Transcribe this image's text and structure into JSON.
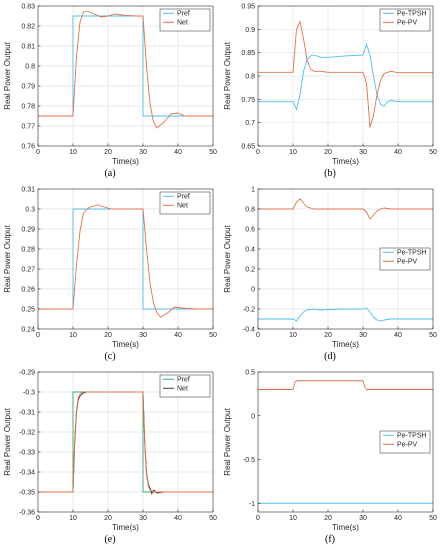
{
  "figure": {
    "panels": [
      {
        "caption": "(a)"
      },
      {
        "caption": "(b)"
      },
      {
        "caption": "(c)"
      },
      {
        "caption": "(d)"
      },
      {
        "caption": "(e)"
      },
      {
        "caption": "(f)"
      }
    ]
  },
  "colors": {
    "blue": "#4DBEEE",
    "orange": "#E0714B",
    "green": "#3FA56A",
    "dark": "#404040"
  },
  "chart_data": [
    {
      "type": "line",
      "xlabel": "Time(s)",
      "ylabel": "Real Power Output",
      "xlim": [
        0,
        50
      ],
      "ylim": [
        0.76,
        0.83
      ],
      "xticks": [
        0,
        10,
        20,
        30,
        40,
        50
      ],
      "yticks": [
        0.76,
        0.77,
        0.78,
        0.79,
        0.8,
        0.81,
        0.82,
        0.83
      ],
      "ytick_labels": [
        "0.76",
        "0.77",
        "0.78",
        "0.79",
        "0.8",
        "0.81",
        "0.82",
        "0.83"
      ],
      "grid": true,
      "legend": "top-right",
      "series": [
        {
          "name": "Pref",
          "color": "#4DBEEE",
          "x": [
            0,
            10,
            10,
            30,
            30,
            50
          ],
          "y": [
            0.775,
            0.775,
            0.825,
            0.825,
            0.775,
            0.775
          ]
        },
        {
          "name": "Net",
          "color": "#E0714B",
          "x": [
            0,
            10,
            11,
            12,
            13,
            14,
            16,
            18,
            20,
            22,
            25,
            28,
            30,
            31,
            32,
            33,
            34,
            36,
            38,
            40,
            42,
            45,
            50
          ],
          "y": [
            0.775,
            0.775,
            0.805,
            0.822,
            0.827,
            0.8275,
            0.826,
            0.8245,
            0.825,
            0.826,
            0.8253,
            0.825,
            0.825,
            0.8,
            0.781,
            0.772,
            0.769,
            0.772,
            0.776,
            0.7765,
            0.775,
            0.775,
            0.775
          ]
        }
      ]
    },
    {
      "type": "line",
      "xlabel": "Time(s)",
      "ylabel": "Real Power Output",
      "xlim": [
        0,
        50
      ],
      "ylim": [
        0.65,
        0.95
      ],
      "xticks": [
        0,
        10,
        20,
        30,
        40,
        50
      ],
      "yticks": [
        0.65,
        0.7,
        0.75,
        0.8,
        0.85,
        0.9,
        0.95
      ],
      "ytick_labels": [
        "0.65",
        "0.7",
        "0.75",
        "0.8",
        "0.85",
        "0.9",
        "0.95"
      ],
      "grid": true,
      "legend": "top-right",
      "series": [
        {
          "name": "Pe-TPSH",
          "color": "#4DBEEE",
          "x": [
            0,
            10,
            11,
            12,
            13,
            14,
            15,
            16,
            18,
            20,
            25,
            30,
            31,
            32,
            33,
            34,
            35,
            36,
            37,
            38,
            40,
            45,
            50
          ],
          "y": [
            0.745,
            0.745,
            0.728,
            0.76,
            0.81,
            0.835,
            0.843,
            0.845,
            0.84,
            0.84,
            0.843,
            0.845,
            0.868,
            0.845,
            0.8,
            0.76,
            0.74,
            0.735,
            0.745,
            0.748,
            0.745,
            0.745,
            0.745
          ]
        },
        {
          "name": "Pe-PV",
          "color": "#E0714B",
          "x": [
            0,
            10,
            11,
            12,
            13,
            14,
            15,
            16,
            18,
            20,
            25,
            30,
            31,
            32,
            33,
            34,
            35,
            36,
            37,
            38,
            40,
            45,
            50
          ],
          "y": [
            0.808,
            0.808,
            0.9,
            0.917,
            0.88,
            0.835,
            0.815,
            0.81,
            0.81,
            0.808,
            0.808,
            0.808,
            0.785,
            0.69,
            0.715,
            0.76,
            0.79,
            0.805,
            0.808,
            0.81,
            0.807,
            0.807,
            0.807
          ]
        }
      ]
    },
    {
      "type": "line",
      "xlabel": "Time(s)",
      "ylabel": "Real Power Output",
      "xlim": [
        0,
        50
      ],
      "ylim": [
        0.24,
        0.31
      ],
      "xticks": [
        0,
        10,
        20,
        30,
        40,
        50
      ],
      "yticks": [
        0.24,
        0.25,
        0.26,
        0.27,
        0.28,
        0.29,
        0.3,
        0.31
      ],
      "ytick_labels": [
        "0.24",
        "0.25",
        "0.26",
        "0.27",
        "0.28",
        "0.29",
        "0.3",
        "0.31"
      ],
      "grid": true,
      "legend": "top-right",
      "series": [
        {
          "name": "Pref",
          "color": "#4DBEEE",
          "x": [
            0,
            10,
            10,
            30,
            30,
            50
          ],
          "y": [
            0.25,
            0.25,
            0.3,
            0.3,
            0.25,
            0.25
          ]
        },
        {
          "name": "Net",
          "color": "#E0714B",
          "x": [
            0,
            10,
            11,
            12,
            13,
            14,
            15,
            17,
            19,
            21,
            24,
            27,
            30,
            31,
            32,
            33,
            34,
            35,
            37,
            39,
            41,
            45,
            50
          ],
          "y": [
            0.25,
            0.25,
            0.272,
            0.289,
            0.298,
            0.3,
            0.301,
            0.302,
            0.301,
            0.3,
            0.3,
            0.3,
            0.3,
            0.28,
            0.263,
            0.253,
            0.248,
            0.246,
            0.248,
            0.251,
            0.2505,
            0.25,
            0.25
          ]
        }
      ]
    },
    {
      "type": "line",
      "xlabel": "Time(s)",
      "ylabel": "Real Power Output",
      "xlim": [
        0,
        50
      ],
      "ylim": [
        -0.4,
        1
      ],
      "xticks": [
        0,
        10,
        20,
        30,
        40,
        50
      ],
      "yticks": [
        -0.4,
        -0.2,
        0,
        0.2,
        0.4,
        0.6,
        0.8,
        1
      ],
      "ytick_labels": [
        "-0.4",
        "-0.2",
        "0",
        "0.2",
        "0.4",
        "0.6",
        "0.8",
        "1"
      ],
      "grid": true,
      "legend": "center-right",
      "series": [
        {
          "name": "Pe-TPSH",
          "color": "#4DBEEE",
          "x": [
            0,
            10,
            11,
            12,
            13,
            14,
            15,
            16,
            18,
            20,
            25,
            30,
            31,
            32,
            33,
            34,
            35,
            36,
            38,
            40,
            45,
            50
          ],
          "y": [
            -0.3,
            -0.3,
            -0.32,
            -0.27,
            -0.23,
            -0.21,
            -0.205,
            -0.2,
            -0.21,
            -0.205,
            -0.2,
            -0.2,
            -0.19,
            -0.23,
            -0.28,
            -0.31,
            -0.32,
            -0.31,
            -0.3,
            -0.3,
            -0.3,
            -0.3
          ]
        },
        {
          "name": "Pe-PV",
          "color": "#E0714B",
          "x": [
            0,
            10,
            11,
            12,
            13,
            14,
            15,
            16,
            18,
            20,
            25,
            30,
            31,
            32,
            33,
            34,
            35,
            36,
            38,
            40,
            45,
            50
          ],
          "y": [
            0.8,
            0.8,
            0.87,
            0.9,
            0.86,
            0.82,
            0.81,
            0.8,
            0.8,
            0.8,
            0.8,
            0.8,
            0.77,
            0.7,
            0.74,
            0.78,
            0.8,
            0.81,
            0.8,
            0.8,
            0.8,
            0.8
          ]
        }
      ]
    },
    {
      "type": "line",
      "xlabel": "Time(s)",
      "ylabel": "Real Power Output",
      "xlim": [
        0,
        50
      ],
      "ylim": [
        -0.36,
        -0.29
      ],
      "xticks": [
        0,
        10,
        20,
        30,
        40,
        50
      ],
      "yticks": [
        -0.36,
        -0.35,
        -0.34,
        -0.33,
        -0.32,
        -0.31,
        -0.3,
        -0.29
      ],
      "ytick_labels": [
        "-0.36",
        "-0.35",
        "-0.34",
        "-0.33",
        "-0.32",
        "-0.31",
        "-0.3",
        "-0.29"
      ],
      "grid": true,
      "legend": "top-right",
      "series": [
        {
          "name": "Pref",
          "color": "#3FA56A",
          "x": [
            0,
            10,
            10,
            30,
            30,
            50
          ],
          "y": [
            -0.35,
            -0.35,
            -0.3,
            -0.3,
            -0.35,
            -0.35
          ]
        },
        {
          "name": "Net",
          "color": "#404040",
          "x": [
            0,
            10,
            10.5,
            11,
            11.5,
            12,
            13,
            14,
            16,
            20,
            25,
            30,
            30.5,
            31,
            31.5,
            32,
            32.5,
            33,
            34,
            36,
            40,
            50
          ],
          "y": [
            -0.35,
            -0.35,
            -0.325,
            -0.31,
            -0.304,
            -0.302,
            -0.3005,
            -0.3,
            -0.3,
            -0.3,
            -0.3,
            -0.3,
            -0.325,
            -0.34,
            -0.346,
            -0.348,
            -0.351,
            -0.349,
            -0.3505,
            -0.35,
            -0.35,
            -0.35
          ]
        },
        {
          "name": "",
          "color": "#E0714B",
          "x": [
            0,
            10,
            10.5,
            11,
            11.5,
            12,
            13,
            14,
            16,
            20,
            25,
            30,
            30.5,
            31,
            31.5,
            32,
            33,
            34,
            36,
            40,
            50
          ],
          "y": [
            -0.35,
            -0.35,
            -0.323,
            -0.309,
            -0.303,
            -0.301,
            -0.3,
            -0.3,
            -0.3,
            -0.3,
            -0.3,
            -0.3,
            -0.326,
            -0.341,
            -0.347,
            -0.349,
            -0.35,
            -0.35,
            -0.35,
            -0.35,
            -0.35
          ]
        }
      ]
    },
    {
      "type": "line",
      "xlabel": "Time(s)",
      "ylabel": "Real Power Output",
      "xlim": [
        0,
        50
      ],
      "ylim": [
        -1.1,
        0.5
      ],
      "xticks": [
        0,
        10,
        20,
        30,
        40,
        50
      ],
      "yticks": [
        -1,
        -0.5,
        0,
        0.5
      ],
      "ytick_labels": [
        "-1",
        "-0.5",
        "0",
        "0.5"
      ],
      "grid": false,
      "legend": "center-right",
      "series": [
        {
          "name": "Pe-TPSH",
          "color": "#4DBEEE",
          "x": [
            0,
            50
          ],
          "y": [
            -1,
            -1
          ]
        },
        {
          "name": "Pe-PV",
          "color": "#E0714B",
          "x": [
            0,
            10,
            10.5,
            11,
            30,
            30.5,
            31,
            50
          ],
          "y": [
            0.3,
            0.3,
            0.38,
            0.4,
            0.4,
            0.33,
            0.3,
            0.3
          ]
        }
      ]
    }
  ]
}
